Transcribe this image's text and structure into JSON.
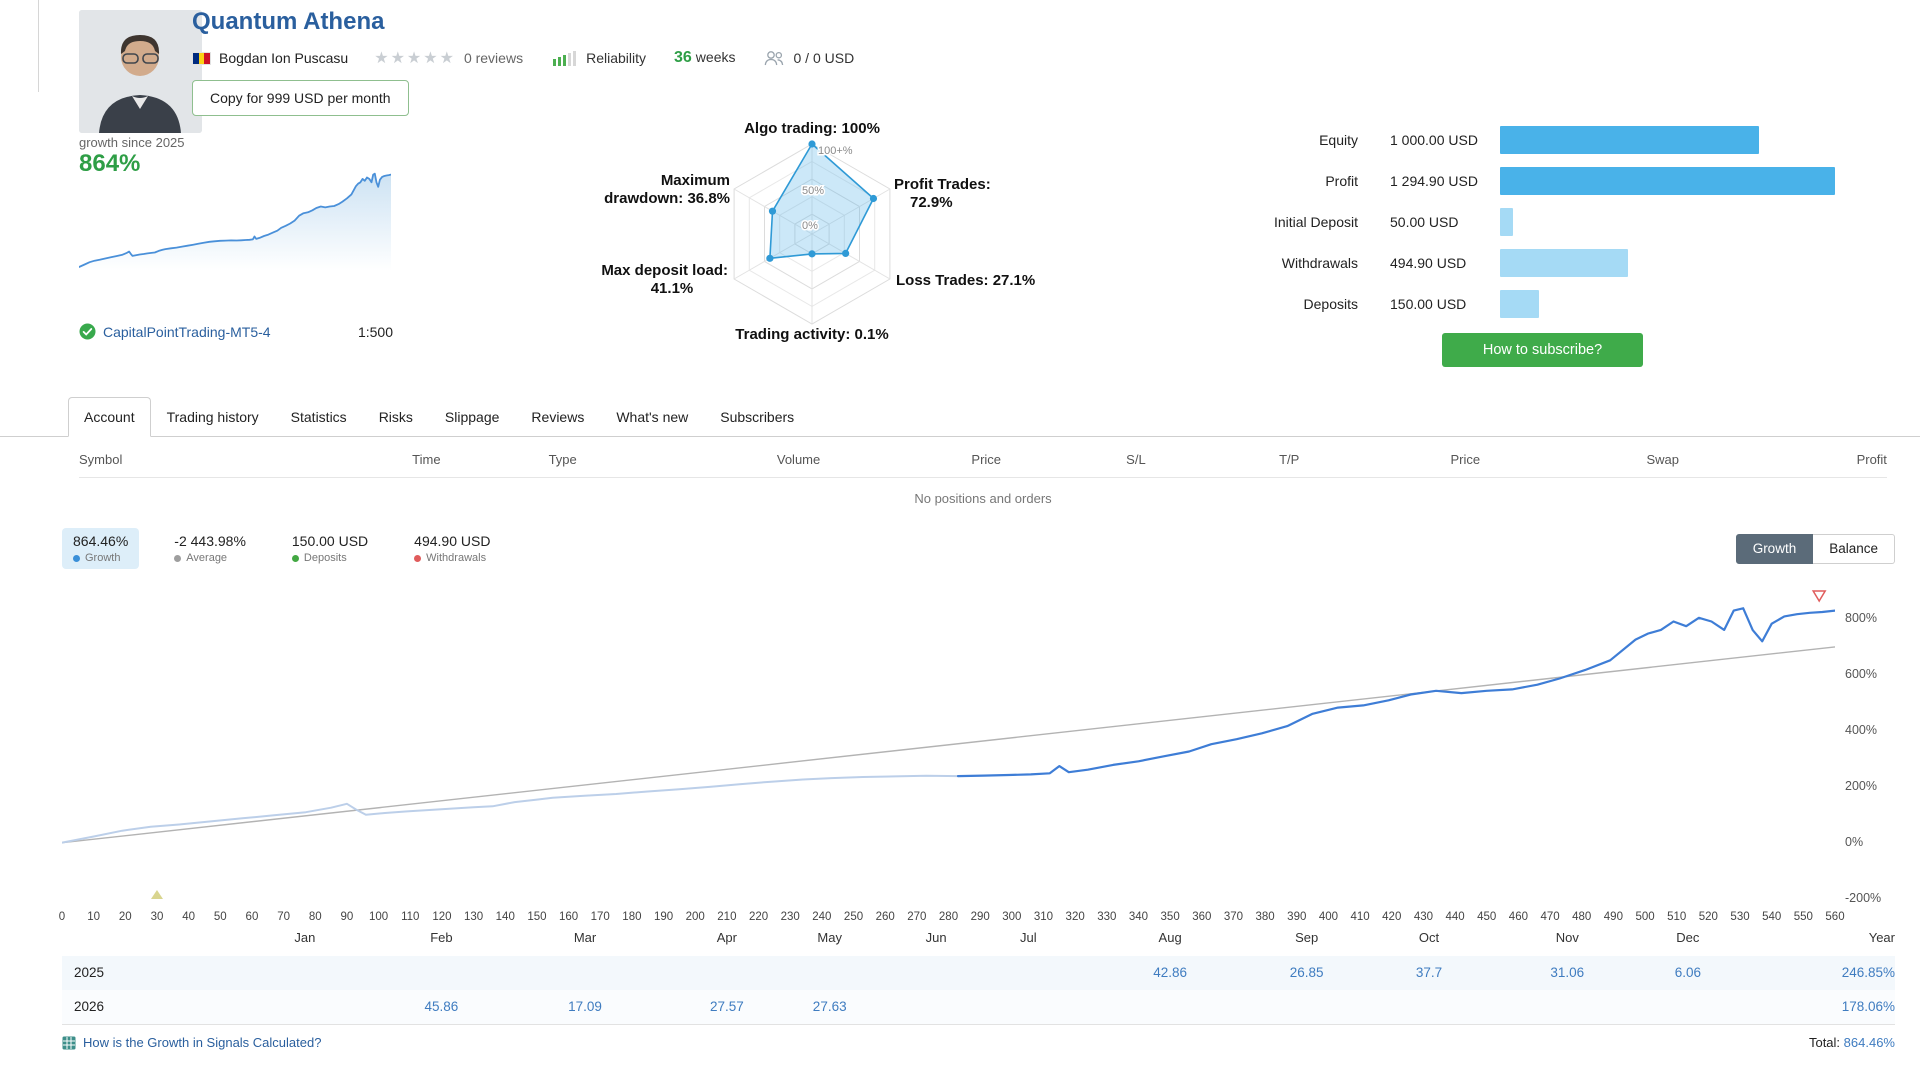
{
  "header": {
    "title": "Quantum Athena",
    "author": "Bogdan Ion Puscasu",
    "reviews": "0 reviews",
    "rating_stars": 0,
    "reliability_label": "Reliability",
    "weeks_value": "36",
    "weeks_label": "weeks",
    "price_info": "0 / 0 USD",
    "copy_button": "Copy for 999 USD per month"
  },
  "growth_summary": {
    "caption": "growth since 2025",
    "value": "864%",
    "server": "CapitalPointTrading-MT5-4",
    "leverage": "1:500"
  },
  "stats": {
    "rows": [
      {
        "label": "Equity",
        "value": "1 000.00 USD",
        "num": 1000.0,
        "tone": "primary"
      },
      {
        "label": "Profit",
        "value": "1 294.90 USD",
        "num": 1294.9,
        "tone": "primary"
      },
      {
        "label": "Initial Deposit",
        "value": "50.00 USD",
        "num": 50.0,
        "tone": "light"
      },
      {
        "label": "Withdrawals",
        "value": "494.90 USD",
        "num": 494.9,
        "tone": "light"
      },
      {
        "label": "Deposits",
        "value": "150.00 USD",
        "num": 150.0,
        "tone": "light"
      }
    ],
    "subscribe_button": "How to subscribe?"
  },
  "tabs": [
    {
      "label": "Account",
      "active": true
    },
    {
      "label": "Trading history",
      "active": false
    },
    {
      "label": "Statistics",
      "active": false
    },
    {
      "label": "Risks",
      "active": false
    },
    {
      "label": "Slippage",
      "active": false
    },
    {
      "label": "Reviews",
      "active": false
    },
    {
      "label": "What's new",
      "active": false
    },
    {
      "label": "Subscribers",
      "active": false
    }
  ],
  "positions_table": {
    "columns": [
      "Symbol",
      "Time",
      "Type",
      "Volume",
      "Price",
      "S/L",
      "T/P",
      "Price",
      "Swap",
      "Profit"
    ],
    "empty_message": "No positions and orders"
  },
  "legend": {
    "items": [
      {
        "value": "864.46%",
        "label": "Growth",
        "dot": "#3a8fd8",
        "highlight": true
      },
      {
        "value": "-2 443.98%",
        "label": "Average",
        "dot": "#9e9e9e",
        "highlight": false
      },
      {
        "value": "150.00 USD",
        "label": "Deposits",
        "dot": "#43a843",
        "highlight": false
      },
      {
        "value": "494.90 USD",
        "label": "Withdrawals",
        "dot": "#e05c5c",
        "highlight": false
      }
    ],
    "mode_buttons": {
      "growth": "Growth",
      "balance": "Balance"
    }
  },
  "chart_data": [
    {
      "id": "growth-main",
      "type": "line",
      "title": "Growth",
      "xlim": [
        0,
        560
      ],
      "x_tick_step": 10,
      "ylim": [
        -200,
        950
      ],
      "y_ticks": [
        800,
        600,
        400,
        200,
        0,
        -200
      ],
      "y_tick_suffix": "%",
      "grid": false,
      "series": [
        {
          "name": "growth-early",
          "color": "#bccfe9",
          "points": [
            [
              0,
              0
            ],
            [
              10,
              22
            ],
            [
              19,
              43
            ],
            [
              28,
              57
            ],
            [
              37,
              65
            ],
            [
              47,
              76
            ],
            [
              57,
              87
            ],
            [
              67,
              98
            ],
            [
              77,
              109
            ],
            [
              85,
              125
            ],
            [
              90,
              139
            ],
            [
              93,
              118
            ],
            [
              96,
              100
            ],
            [
              102,
              106
            ],
            [
              109,
              112
            ],
            [
              116,
              117
            ],
            [
              123,
              122
            ],
            [
              130,
              127
            ],
            [
              136,
              130
            ],
            [
              143,
              145
            ],
            [
              150,
              154
            ],
            [
              155,
              161
            ],
            [
              165,
              168
            ],
            [
              175,
              174
            ],
            [
              185,
              183
            ],
            [
              195,
              191
            ],
            [
              205,
              200
            ],
            [
              214,
              209
            ],
            [
              224,
              218
            ],
            [
              234,
              226
            ],
            [
              243,
              231
            ],
            [
              253,
              235
            ],
            [
              263,
              237
            ],
            [
              273,
              239
            ],
            [
              283,
              238
            ]
          ]
        },
        {
          "name": "growth",
          "color": "#3e7dd6",
          "points": [
            [
              283,
              238
            ],
            [
              291,
              240
            ],
            [
              299,
              242
            ],
            [
              306,
              244
            ],
            [
              312,
              248
            ],
            [
              315,
              274
            ],
            [
              318,
              252
            ],
            [
              324,
              261
            ],
            [
              332,
              278
            ],
            [
              340,
              291
            ],
            [
              348,
              309
            ],
            [
              356,
              326
            ],
            [
              363,
              352
            ],
            [
              371,
              370
            ],
            [
              379,
              391
            ],
            [
              387,
              417
            ],
            [
              395,
              461
            ],
            [
              403,
              483
            ],
            [
              411,
              491
            ],
            [
              419,
              509
            ],
            [
              426,
              530
            ],
            [
              434,
              543
            ],
            [
              442,
              535
            ],
            [
              450,
              543
            ],
            [
              458,
              548
            ],
            [
              466,
              565
            ],
            [
              473,
              587
            ],
            [
              481,
              617
            ],
            [
              489,
              652
            ],
            [
              497,
              726
            ],
            [
              501,
              748
            ],
            [
              505,
              761
            ],
            [
              509,
              791
            ],
            [
              513,
              774
            ],
            [
              517,
              804
            ],
            [
              521,
              791
            ],
            [
              525,
              761
            ],
            [
              528,
              830
            ],
            [
              531,
              838
            ],
            [
              534,
              760
            ],
            [
              537,
              720
            ],
            [
              540,
              783
            ],
            [
              544,
              809
            ],
            [
              548,
              817
            ],
            [
              552,
              822
            ],
            [
              556,
              825
            ],
            [
              560,
              830
            ]
          ]
        },
        {
          "name": "trend-baseline",
          "color": "#b3b3b3",
          "points": [
            [
              0,
              0
            ],
            [
              560,
              700
            ]
          ]
        }
      ],
      "markers": {
        "deposit_x": 30,
        "end": [
          555,
          900
        ]
      },
      "months_axis": [
        {
          "label": "Jan",
          "pos": 13.7
        },
        {
          "label": "Feb",
          "pos": 21.4
        },
        {
          "label": "Mar",
          "pos": 29.5
        },
        {
          "label": "Apr",
          "pos": 37.5
        },
        {
          "label": "May",
          "pos": 43.3
        },
        {
          "label": "Jun",
          "pos": 49.3
        },
        {
          "label": "Jul",
          "pos": 54.5
        },
        {
          "label": "Aug",
          "pos": 62.5
        },
        {
          "label": "Sep",
          "pos": 70.2
        },
        {
          "label": "Oct",
          "pos": 77.1
        },
        {
          "label": "Nov",
          "pos": 84.9
        },
        {
          "label": "Dec",
          "pos": 91.7
        }
      ],
      "year_axis_label": "Year"
    },
    {
      "id": "trading-radar",
      "type": "radar",
      "axes": [
        "Algo trading",
        "Profit Trades",
        "Loss Trades",
        "Trading activity",
        "Max deposit load",
        "Maximum drawdown"
      ],
      "values": [
        100,
        72.9,
        27.1,
        0.1,
        41.1,
        36.8
      ],
      "ring_labels": [
        "100+%",
        "50%",
        "0%"
      ]
    },
    {
      "id": "account-bars",
      "type": "bar",
      "orientation": "horizontal",
      "categories": [
        "Equity",
        "Profit",
        "Initial Deposit",
        "Withdrawals",
        "Deposits"
      ],
      "values": [
        1000.0,
        1294.9,
        50.0,
        494.9,
        150.0
      ],
      "unit": "USD"
    }
  ],
  "monthly": {
    "rows": [
      {
        "year": "2025",
        "cells": [
          {
            "month": "Aug",
            "value": "42.86",
            "pos": 62.5
          },
          {
            "month": "Sep",
            "value": "26.85",
            "pos": 70.2
          },
          {
            "month": "Oct",
            "value": "37.7",
            "pos": 77.1
          },
          {
            "month": "Nov",
            "value": "31.06",
            "pos": 84.9
          },
          {
            "month": "Dec",
            "value": "6.06",
            "pos": 91.7
          }
        ],
        "total": "246.85%"
      },
      {
        "year": "2026",
        "cells": [
          {
            "month": "Jan",
            "value": "45.86",
            "pos": 21.4
          },
          {
            "month": "Feb",
            "value": "17.09",
            "pos": 29.5
          },
          {
            "month": "Mar",
            "value": "27.57",
            "pos": 37.5
          },
          {
            "month": "Apr",
            "value": "27.63",
            "pos": 43.3
          }
        ],
        "total": "178.06%"
      }
    ]
  },
  "footer": {
    "link_label": "How is the Growth in Signals Calculated?",
    "total_label": "Total:",
    "total_value": "864.46%"
  },
  "colors": {
    "link_blue": "#2a5f9e",
    "accent_green": "#2e9e46",
    "chart_blue": "#3e7dd6",
    "chart_pale": "#bccfe9",
    "bar_blue": "#49b2e9",
    "bar_light": "#a5daf5",
    "subscribe_green": "#3fab4a"
  }
}
